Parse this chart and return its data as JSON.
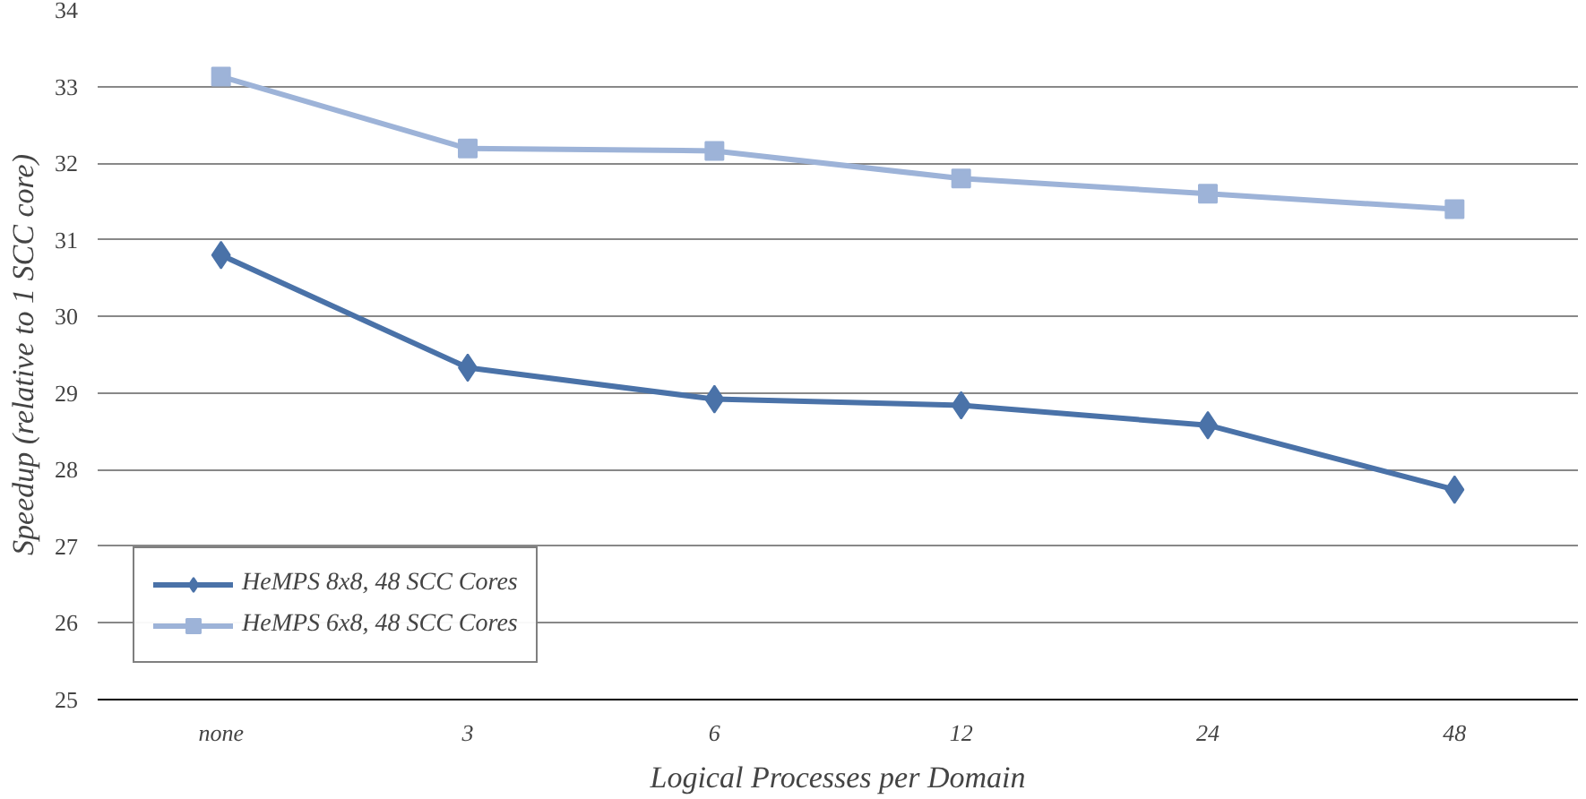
{
  "chart_data": {
    "type": "line",
    "xlabel": "Logical Processes per Domain",
    "ylabel": "Speedup (relative to 1 SCC core)",
    "categories": [
      "none",
      "3",
      "6",
      "12",
      "24",
      "48"
    ],
    "series": [
      {
        "name": "HeMPS 8x8, 48 SCC Cores",
        "color": "#4a72a8",
        "marker": "diamond",
        "values": [
          30.8,
          29.33,
          28.92,
          28.84,
          28.58,
          27.74
        ]
      },
      {
        "name": "HeMPS 6x8, 48 SCC Cores",
        "color": "#9db3d8",
        "marker": "square",
        "values": [
          33.13,
          32.19,
          32.16,
          31.8,
          31.6,
          31.4
        ]
      }
    ],
    "ylim": [
      25,
      34
    ],
    "yticks": [
      25,
      26,
      27,
      28,
      29,
      30,
      31,
      32,
      33,
      34
    ],
    "grid": "y",
    "legend": "bottom left",
    "line_style": "solid"
  }
}
